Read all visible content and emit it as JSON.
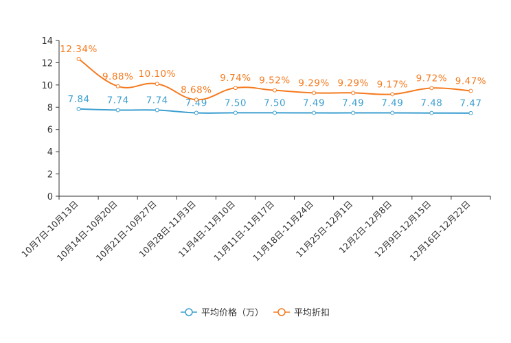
{
  "chart_data": {
    "type": "line",
    "title": "",
    "xlabel": "",
    "ylabel": "",
    "ylim": [
      0,
      14
    ],
    "yticks": [
      0,
      2,
      4,
      6,
      8,
      10,
      12,
      14
    ],
    "legend_position": "bottom-center",
    "categories": [
      "10月7日-10月13日",
      "10月14日-10月20日",
      "10月21日-10月27日",
      "10月28日-11月3日",
      "11月4日-11月10日",
      "11月11日-11月17日",
      "11月18日-11月24日",
      "11月25日-12月1日",
      "12月2日-12月8日",
      "12月9日-12月15日",
      "12月16日-12月22日"
    ],
    "series": [
      {
        "name": "平均价格（万）",
        "color": "#3c9fd0",
        "values": [
          7.84,
          7.74,
          7.74,
          7.49,
          7.5,
          7.5,
          7.49,
          7.49,
          7.49,
          7.48,
          7.47
        ],
        "labels": [
          "7.84",
          "7.74",
          "7.74",
          "7.49",
          "7.50",
          "7.50",
          "7.49",
          "7.49",
          "7.49",
          "7.48",
          "7.47"
        ]
      },
      {
        "name": "平均折扣",
        "color": "#f57a1e",
        "values": [
          12.34,
          9.88,
          10.1,
          8.68,
          9.74,
          9.52,
          9.29,
          9.29,
          9.17,
          9.72,
          9.47
        ],
        "labels": [
          "12.34%",
          "9.88%",
          "10.10%",
          "8.68%",
          "9.74%",
          "9.52%",
          "9.29%",
          "9.29%",
          "9.17%",
          "9.72%",
          "9.47%"
        ]
      }
    ]
  }
}
